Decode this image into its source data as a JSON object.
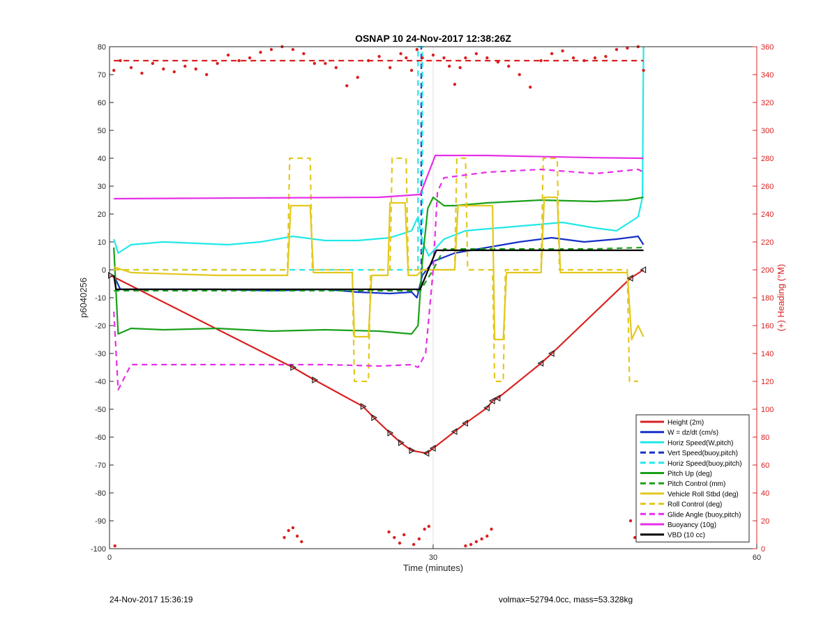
{
  "chart_data": {
    "type": "line",
    "title": "OSNAP 10 24-Nov-2017 12:38:26Z",
    "xlabel": "Time (minutes)",
    "ylabel": "p6040256",
    "ylabel_right": "(+) Heading (°M)",
    "xlim": [
      0,
      60
    ],
    "ylim": [
      -100,
      80
    ],
    "ylim_right": [
      0,
      360
    ],
    "xticks": [
      "0",
      "30",
      "60"
    ],
    "yticks": [
      "80",
      "70",
      "60",
      "50",
      "40",
      "30",
      "20",
      "10",
      "0",
      "-10",
      "-20",
      "-30",
      "-40",
      "-50",
      "-60",
      "-70",
      "-80",
      "-90",
      "-100"
    ],
    "yticks_right": [
      "360",
      "340",
      "320",
      "300",
      "280",
      "260",
      "240",
      "220",
      "200",
      "180",
      "160",
      "140",
      "120",
      "100",
      "80",
      "60",
      "40",
      "20",
      "0"
    ],
    "grid": "x only",
    "legend_position": "bottom-right",
    "colors": {
      "red": "#d92020",
      "blue": "#1530c8",
      "cyan": "#22e8e8",
      "green": "#1aa01a",
      "yellow": "#e3c81e",
      "magenta": "#e62ee6",
      "black": "#000000",
      "axis_right": "#d92020"
    },
    "series": [
      {
        "name": "Height (2m)",
        "color": "red",
        "style": "solid",
        "x": [
          0.1,
          17,
          19,
          23.5,
          24.5,
          26,
          27,
          28,
          29.4,
          30,
          32,
          33,
          35,
          35.5,
          36,
          40,
          41,
          48.3,
          49.5
        ],
        "y": [
          -2,
          -35,
          -39.5,
          -49,
          -53,
          -58.5,
          -62,
          -64.8,
          -65.8,
          -64,
          -58,
          -55,
          -49.5,
          -47,
          -46,
          -33.5,
          -30,
          -3,
          0
        ]
      },
      {
        "name": "W = dz/dt (cm/s)",
        "color": "blue",
        "style": "solid",
        "x": [
          0.4,
          1,
          5,
          10,
          15,
          20,
          23,
          26,
          28,
          28.5,
          29,
          30,
          32,
          35,
          38,
          41,
          44,
          47,
          49,
          49.5
        ],
        "y": [
          -2,
          -7,
          -7,
          -7,
          -7.5,
          -7,
          -8,
          -8.5,
          -8,
          -10,
          -2,
          3,
          6,
          8,
          10,
          11.5,
          10,
          11,
          12,
          9
        ]
      },
      {
        "name": "Horiz Speed(W,pitch)",
        "color": "cyan",
        "style": "solid",
        "x": [
          0.4,
          0.8,
          2,
          5,
          8,
          11,
          14,
          17,
          20,
          23,
          26,
          28,
          28.6,
          29,
          29.6,
          31,
          33,
          36,
          39,
          42,
          45,
          47,
          49,
          49.4,
          49.5
        ],
        "y": [
          11,
          6,
          9,
          10,
          9.5,
          9,
          10,
          12,
          10.5,
          10.5,
          11.5,
          14,
          19,
          10,
          5,
          11,
          14,
          15,
          16,
          17,
          15,
          14,
          19,
          26,
          80
        ]
      },
      {
        "name": "Vert Speed(buoy,pitch)",
        "color": "blue",
        "style": "dashed",
        "x": [
          28.9,
          28.9
        ],
        "y": [
          -5,
          80
        ]
      },
      {
        "name": "Horiz Speed(buoy,pitch)",
        "color": "cyan",
        "style": "dashed",
        "x": [
          0.4,
          28.6,
          28.6,
          29,
          29,
          30
        ],
        "y": [
          0,
          0,
          80,
          80,
          0,
          0
        ]
      },
      {
        "name": "Pitch Up (deg)",
        "color": "green",
        "style": "solid",
        "x": [
          0.4,
          0.8,
          2,
          5,
          10,
          15,
          20,
          25,
          28,
          28.6,
          29,
          29.5,
          30,
          31,
          32,
          35,
          40,
          45,
          48,
          49.5
        ],
        "y": [
          8,
          -23,
          -21,
          -21.5,
          -21,
          -22,
          -21.5,
          -22,
          -23,
          -20,
          3,
          22,
          26,
          23,
          23,
          24,
          25,
          24.5,
          25,
          26
        ]
      },
      {
        "name": "Pitch Control (mm)",
        "color": "green",
        "style": "dashed",
        "x": [
          0.4,
          5,
          20,
          27.5,
          28.8,
          30,
          31,
          35,
          40,
          45,
          49.5
        ],
        "y": [
          -7.5,
          -7.5,
          -7.5,
          -7.5,
          -7.5,
          0,
          7.5,
          7.5,
          7.5,
          7.5,
          8
        ]
      },
      {
        "name": "Vehicle Roll Stbd (deg)",
        "color": "yellow",
        "style": "solid",
        "x": [
          0.4,
          2,
          10,
          16.5,
          16.8,
          18.6,
          18.9,
          22.5,
          22.7,
          24,
          24.3,
          25.8,
          26,
          27.4,
          27.7,
          28.5,
          29,
          31,
          32,
          32.3,
          35.5,
          35.7,
          36.5,
          36.8,
          40,
          40.3,
          41.5,
          41.8,
          48,
          48.4,
          49,
          49.5
        ],
        "y": [
          1,
          -1,
          -2,
          -2,
          23,
          23,
          -1,
          -1,
          -24,
          -24,
          -2,
          -2,
          24,
          24,
          -2,
          -2,
          0,
          0,
          0,
          23,
          23,
          -25,
          -25,
          -1,
          -1,
          26,
          26,
          -1,
          -1,
          -25,
          -20,
          -24
        ]
      },
      {
        "name": "Roll Control (deg)",
        "color": "yellow",
        "style": "dashed",
        "x": [
          0.4,
          16.5,
          16.7,
          18.6,
          18.8,
          22.5,
          22.7,
          24,
          24.2,
          26,
          26.2,
          27.5,
          27.7,
          32,
          32.2,
          33,
          33.2,
          35.5,
          35.7,
          36.5,
          36.7,
          40,
          40.2,
          41.5,
          41.7,
          48,
          48.2,
          49
        ],
        "y": [
          0,
          0,
          40,
          40,
          0,
          0,
          -40,
          -40,
          0,
          0,
          40,
          40,
          0,
          0,
          40,
          40,
          0,
          0,
          -40,
          -40,
          0,
          0,
          40,
          40,
          0,
          0,
          -40,
          -40
        ]
      },
      {
        "name": "Glide Angle (buoy,pitch)",
        "color": "magenta",
        "style": "dashed",
        "x": [
          0.4,
          0.8,
          2,
          5,
          10,
          15,
          20,
          25,
          28,
          28.6,
          29.3,
          30,
          30.4,
          31,
          35,
          40,
          45,
          49,
          49.5
        ],
        "y": [
          -15,
          -43,
          -34,
          -34,
          -34,
          -34,
          -34,
          -34.5,
          -34,
          -35,
          -30,
          0,
          28,
          33,
          35,
          36,
          34.5,
          36,
          35
        ]
      },
      {
        "name": "Buoyancy (10g)",
        "color": "magenta",
        "style": "solid",
        "x": [
          0.4,
          10,
          25,
          28.8,
          30.2,
          35,
          45,
          49.5
        ],
        "y": [
          25.5,
          25.7,
          26,
          27,
          41,
          41,
          40.2,
          40
        ]
      },
      {
        "name": "VBD (10 cc)",
        "color": "black",
        "style": "solid",
        "x": [
          0.4,
          0.6,
          10,
          20,
          28.8,
          30.3,
          35,
          45,
          49.5
        ],
        "y": [
          -2,
          -7,
          -7,
          -7,
          -7,
          7,
          7,
          7,
          7
        ]
      },
      {
        "axis": "right",
        "color": "red",
        "style": "dashed",
        "x": [
          0.4,
          49.5
        ],
        "y": [
          350,
          350
        ]
      },
      {
        "axis": "right",
        "color": "red",
        "style": "dots",
        "x": [
          0.4,
          1,
          2,
          3,
          4,
          5,
          6,
          7,
          8,
          9,
          10,
          11,
          12,
          13,
          14,
          15,
          16,
          17,
          18,
          19,
          20,
          21,
          22,
          23,
          24,
          25,
          26,
          27,
          27.5,
          28,
          28.5,
          29,
          30,
          31,
          31.5,
          32,
          32.5,
          33,
          34,
          35,
          36,
          37,
          38,
          39,
          40,
          41,
          42,
          43,
          44,
          45,
          46,
          47,
          48,
          49,
          49.5
        ],
        "y": [
          343,
          350,
          345,
          341,
          348,
          344,
          342,
          346,
          344,
          340,
          348,
          354,
          350,
          352,
          356,
          358,
          360,
          358,
          355,
          348,
          348,
          345,
          332,
          338,
          350,
          353,
          345,
          355,
          352,
          343,
          358,
          352,
          354,
          352,
          346,
          333,
          345,
          352,
          355,
          352,
          349,
          346,
          340,
          331,
          350,
          355,
          357,
          352,
          350,
          352,
          353,
          358,
          359,
          360,
          343
        ]
      },
      {
        "axis": "right",
        "color": "red",
        "style": "dots",
        "x": [
          0.5,
          16.2,
          16.6,
          17,
          17.4,
          17.8,
          25.9,
          26.4,
          26.9,
          27.3,
          28.2,
          28.7,
          29.2,
          29.6,
          33,
          33.5,
          34,
          34.5,
          35,
          35.4,
          48.3,
          48.7,
          49.1,
          49.5
        ],
        "y": [
          2,
          8,
          13,
          15,
          9,
          5,
          12,
          8,
          4,
          10,
          3,
          7,
          14,
          16,
          2,
          3,
          5,
          7,
          9,
          14,
          20,
          8,
          6,
          9
        ]
      }
    ]
  },
  "footer": {
    "left": "24-Nov-2017 15:36:19",
    "right": "volmax=52794.0cc, mass=53.328kg"
  }
}
